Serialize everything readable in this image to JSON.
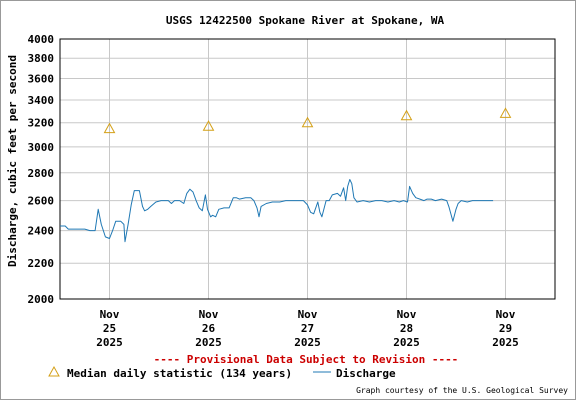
{
  "chart_data": {
    "type": "line",
    "title": "USGS 12422500 Spokane River at Spokane, WA",
    "ylabel": "Discharge, cubic feet per second",
    "xlabel": "",
    "ylim": [
      2000,
      4000
    ],
    "y_scale": "log",
    "y_ticks": [
      2000,
      2200,
      2400,
      2600,
      2800,
      3000,
      3200,
      3400,
      3600,
      3800,
      4000
    ],
    "x_range": [
      "2025-11-24 12:00",
      "2025-11-29 12:00"
    ],
    "x_ticks": [
      {
        "x": "2025-11-25",
        "lines": [
          "Nov",
          "25",
          "2025"
        ]
      },
      {
        "x": "2025-11-26",
        "lines": [
          "Nov",
          "26",
          "2025"
        ]
      },
      {
        "x": "2025-11-27",
        "lines": [
          "Nov",
          "27",
          "2025"
        ]
      },
      {
        "x": "2025-11-28",
        "lines": [
          "Nov",
          "28",
          "2025"
        ]
      },
      {
        "x": "2025-11-29",
        "lines": [
          "Nov",
          "29",
          "2025"
        ]
      }
    ],
    "grid": true,
    "series": [
      {
        "name": "Median daily statistic (134 years)",
        "kind": "triangle-markers",
        "color": "#d4a017",
        "points": [
          {
            "x": "2025-11-25 00:00",
            "y": 3150
          },
          {
            "x": "2025-11-26 00:00",
            "y": 3170
          },
          {
            "x": "2025-11-27 00:00",
            "y": 3200
          },
          {
            "x": "2025-11-28 00:00",
            "y": 3260
          },
          {
            "x": "2025-11-29 00:00",
            "y": 3280
          }
        ]
      },
      {
        "name": "Discharge",
        "kind": "line",
        "color": "#1f78b4",
        "points": [
          {
            "x": "2025-11-24 12:00",
            "y": 2430
          },
          {
            "x": "2025-11-24 13:15",
            "y": 2430
          },
          {
            "x": "2025-11-24 14:00",
            "y": 2410
          },
          {
            "x": "2025-11-24 16:00",
            "y": 2410
          },
          {
            "x": "2025-11-24 18:00",
            "y": 2410
          },
          {
            "x": "2025-11-24 19:15",
            "y": 2400
          },
          {
            "x": "2025-11-24 20:30",
            "y": 2400
          },
          {
            "x": "2025-11-24 21:15",
            "y": 2540
          },
          {
            "x": "2025-11-24 22:00",
            "y": 2440
          },
          {
            "x": "2025-11-24 23:00",
            "y": 2360
          },
          {
            "x": "2025-11-25 00:00",
            "y": 2350
          },
          {
            "x": "2025-11-25 00:45",
            "y": 2400
          },
          {
            "x": "2025-11-25 01:30",
            "y": 2460
          },
          {
            "x": "2025-11-25 02:45",
            "y": 2460
          },
          {
            "x": "2025-11-25 03:30",
            "y": 2440
          },
          {
            "x": "2025-11-25 03:45",
            "y": 2330
          },
          {
            "x": "2025-11-25 04:30",
            "y": 2440
          },
          {
            "x": "2025-11-25 05:15",
            "y": 2570
          },
          {
            "x": "2025-11-25 06:00",
            "y": 2670
          },
          {
            "x": "2025-11-25 07:15",
            "y": 2670
          },
          {
            "x": "2025-11-25 08:00",
            "y": 2560
          },
          {
            "x": "2025-11-25 08:30",
            "y": 2530
          },
          {
            "x": "2025-11-25 09:15",
            "y": 2540
          },
          {
            "x": "2025-11-25 10:00",
            "y": 2560
          },
          {
            "x": "2025-11-25 11:15",
            "y": 2590
          },
          {
            "x": "2025-11-25 12:30",
            "y": 2600
          },
          {
            "x": "2025-11-25 14:15",
            "y": 2600
          },
          {
            "x": "2025-11-25 15:00",
            "y": 2580
          },
          {
            "x": "2025-11-25 15:45",
            "y": 2600
          },
          {
            "x": "2025-11-25 17:00",
            "y": 2600
          },
          {
            "x": "2025-11-25 18:00",
            "y": 2580
          },
          {
            "x": "2025-11-25 18:45",
            "y": 2650
          },
          {
            "x": "2025-11-25 19:30",
            "y": 2680
          },
          {
            "x": "2025-11-25 20:15",
            "y": 2660
          },
          {
            "x": "2025-11-25 21:00",
            "y": 2600
          },
          {
            "x": "2025-11-25 21:45",
            "y": 2550
          },
          {
            "x": "2025-11-25 22:30",
            "y": 2530
          },
          {
            "x": "2025-11-25 23:15",
            "y": 2640
          },
          {
            "x": "2025-11-25 23:45",
            "y": 2540
          },
          {
            "x": "2025-11-26 00:30",
            "y": 2490
          },
          {
            "x": "2025-11-26 01:00",
            "y": 2500
          },
          {
            "x": "2025-11-26 01:45",
            "y": 2490
          },
          {
            "x": "2025-11-26 02:30",
            "y": 2540
          },
          {
            "x": "2025-11-26 03:45",
            "y": 2550
          },
          {
            "x": "2025-11-26 05:00",
            "y": 2550
          },
          {
            "x": "2025-11-26 06:00",
            "y": 2620
          },
          {
            "x": "2025-11-26 06:45",
            "y": 2620
          },
          {
            "x": "2025-11-26 07:30",
            "y": 2610
          },
          {
            "x": "2025-11-26 09:00",
            "y": 2620
          },
          {
            "x": "2025-11-26 10:15",
            "y": 2620
          },
          {
            "x": "2025-11-26 11:00",
            "y": 2600
          },
          {
            "x": "2025-11-26 11:45",
            "y": 2550
          },
          {
            "x": "2025-11-26 12:15",
            "y": 2490
          },
          {
            "x": "2025-11-26 12:45",
            "y": 2560
          },
          {
            "x": "2025-11-26 14:00",
            "y": 2580
          },
          {
            "x": "2025-11-26 15:30",
            "y": 2590
          },
          {
            "x": "2025-11-26 17:15",
            "y": 2590
          },
          {
            "x": "2025-11-26 18:45",
            "y": 2600
          },
          {
            "x": "2025-11-26 20:15",
            "y": 2600
          },
          {
            "x": "2025-11-26 21:45",
            "y": 2600
          },
          {
            "x": "2025-11-26 23:00",
            "y": 2600
          },
          {
            "x": "2025-11-27 00:00",
            "y": 2570
          },
          {
            "x": "2025-11-27 00:45",
            "y": 2520
          },
          {
            "x": "2025-11-27 01:30",
            "y": 2510
          },
          {
            "x": "2025-11-27 02:30",
            "y": 2590
          },
          {
            "x": "2025-11-27 03:00",
            "y": 2520
          },
          {
            "x": "2025-11-27 03:30",
            "y": 2490
          },
          {
            "x": "2025-11-27 04:30",
            "y": 2600
          },
          {
            "x": "2025-11-27 05:15",
            "y": 2600
          },
          {
            "x": "2025-11-27 06:00",
            "y": 2640
          },
          {
            "x": "2025-11-27 07:15",
            "y": 2650
          },
          {
            "x": "2025-11-27 08:00",
            "y": 2630
          },
          {
            "x": "2025-11-27 08:45",
            "y": 2690
          },
          {
            "x": "2025-11-27 09:15",
            "y": 2600
          },
          {
            "x": "2025-11-27 09:45",
            "y": 2700
          },
          {
            "x": "2025-11-27 10:15",
            "y": 2750
          },
          {
            "x": "2025-11-27 10:45",
            "y": 2720
          },
          {
            "x": "2025-11-27 11:15",
            "y": 2620
          },
          {
            "x": "2025-11-27 12:00",
            "y": 2590
          },
          {
            "x": "2025-11-27 13:30",
            "y": 2600
          },
          {
            "x": "2025-11-27 15:00",
            "y": 2590
          },
          {
            "x": "2025-11-27 16:30",
            "y": 2600
          },
          {
            "x": "2025-11-27 18:00",
            "y": 2600
          },
          {
            "x": "2025-11-27 19:30",
            "y": 2590
          },
          {
            "x": "2025-11-27 21:00",
            "y": 2600
          },
          {
            "x": "2025-11-27 22:15",
            "y": 2590
          },
          {
            "x": "2025-11-27 23:15",
            "y": 2600
          },
          {
            "x": "2025-11-28 00:15",
            "y": 2590
          },
          {
            "x": "2025-11-28 00:45",
            "y": 2700
          },
          {
            "x": "2025-11-28 01:30",
            "y": 2650
          },
          {
            "x": "2025-11-28 02:15",
            "y": 2620
          },
          {
            "x": "2025-11-28 03:15",
            "y": 2610
          },
          {
            "x": "2025-11-28 04:15",
            "y": 2600
          },
          {
            "x": "2025-11-28 05:00",
            "y": 2610
          },
          {
            "x": "2025-11-28 06:00",
            "y": 2610
          },
          {
            "x": "2025-11-28 07:00",
            "y": 2600
          },
          {
            "x": "2025-11-28 08:30",
            "y": 2610
          },
          {
            "x": "2025-11-28 09:45",
            "y": 2600
          },
          {
            "x": "2025-11-28 10:15",
            "y": 2560
          },
          {
            "x": "2025-11-28 11:15",
            "y": 2460
          },
          {
            "x": "2025-11-28 12:00",
            "y": 2540
          },
          {
            "x": "2025-11-28 12:30",
            "y": 2580
          },
          {
            "x": "2025-11-28 13:15",
            "y": 2600
          },
          {
            "x": "2025-11-28 14:45",
            "y": 2590
          },
          {
            "x": "2025-11-28 16:00",
            "y": 2600
          },
          {
            "x": "2025-11-28 17:30",
            "y": 2600
          },
          {
            "x": "2025-11-28 19:00",
            "y": 2600
          },
          {
            "x": "2025-11-28 20:15",
            "y": 2600
          },
          {
            "x": "2025-11-28 21:00",
            "y": 2600
          }
        ]
      }
    ],
    "provisional_note": "---- Provisional Data Subject to Revision ----",
    "credit": "Graph courtesy of the U.S. Geological Survey"
  }
}
